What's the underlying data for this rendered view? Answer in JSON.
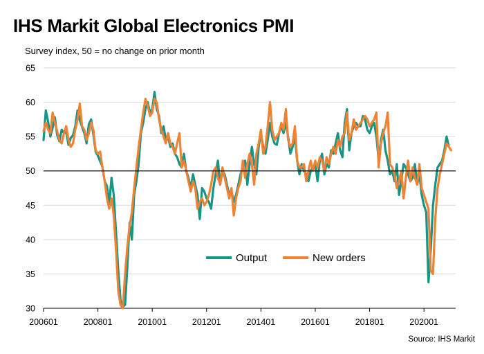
{
  "title": "IHS Markit Global Electronics PMI",
  "subtitle": "Survey index, 50 = no change on prior month",
  "source": "Source: IHS Markit",
  "colors": {
    "output": "#159488",
    "new_orders": "#EF8333",
    "grid": "#D9D9D9",
    "reference": "#000000"
  },
  "chart_data": {
    "type": "line",
    "title": "IHS Markit Global Electronics PMI",
    "ylabel": "Survey index, 50 = no change on prior month",
    "ylim": [
      30,
      65
    ],
    "yticks": [
      30,
      35,
      40,
      45,
      50,
      55,
      60,
      65
    ],
    "xlim": [
      0,
      182
    ],
    "xticks": [
      {
        "label": "200601",
        "index": 0
      },
      {
        "label": "200801",
        "index": 24
      },
      {
        "label": "201001",
        "index": 48
      },
      {
        "label": "201201",
        "index": 72
      },
      {
        "label": "201401",
        "index": 96
      },
      {
        "label": "201601",
        "index": 120
      },
      {
        "label": "201801",
        "index": 144
      },
      {
        "label": "202001",
        "index": 168
      }
    ],
    "reference_line": 50,
    "legend": [
      "Output",
      "New orders"
    ],
    "legend_position": "lower-center",
    "series": [
      {
        "name": "Output",
        "values": [
          54.5,
          58.8,
          57.2,
          55.0,
          56.3,
          57.8,
          55.2,
          54.3,
          56.0,
          55.5,
          55.7,
          53.8,
          54.8,
          55.2,
          56.5,
          58.8,
          57.4,
          56.4,
          55.5,
          54.0,
          56.8,
          57.5,
          55.3,
          52.8,
          52.2,
          51.4,
          50.6,
          48.5,
          47.8,
          45.1,
          49.0,
          46.5,
          41.1,
          35.5,
          31.2,
          30.2,
          30.5,
          36.0,
          42.5,
          40.0,
          46.5,
          48.5,
          51.0,
          55.5,
          57.0,
          59.0,
          60.0,
          58.5,
          59.0,
          61.5,
          59.0,
          58.0,
          55.5,
          56.5,
          54.5,
          55.0,
          53.5,
          54.0,
          52.5,
          52.0,
          51.0,
          50.5,
          52.5,
          50.0,
          49.0,
          47.5,
          49.5,
          48.0,
          46.5,
          43.0,
          47.5,
          47.0,
          46.0,
          45.5,
          44.5,
          47.5,
          49.5,
          51.5,
          48.0,
          50.0,
          49.5,
          48.0,
          46.5,
          47.0,
          45.5,
          46.5,
          48.0,
          49.5,
          50.5,
          51.5,
          48.0,
          51.0,
          53.5,
          51.0,
          49.5,
          53.5,
          55.5,
          53.5,
          52.5,
          54.5,
          57.0,
          55.0,
          54.0,
          53.8,
          55.5,
          56.5,
          55.5,
          57.0,
          55.0,
          52.5,
          53.5,
          55.0,
          51.5,
          49.5,
          51.0,
          50.0,
          49.5,
          48.5,
          50.0,
          50.5,
          51.0,
          48.5,
          51.5,
          52.5,
          49.5,
          51.0,
          50.5,
          53.0,
          52.5,
          54.0,
          55.5,
          53.0,
          52.0,
          57.0,
          59.0,
          53.0,
          55.5,
          56.5,
          57.0,
          56.5,
          56.5,
          58.0,
          57.5,
          56.0,
          55.5,
          56.5,
          57.0,
          55.0,
          51.5,
          54.5,
          56.0,
          53.0,
          51.5,
          49.5,
          50.0,
          48.5,
          51.0,
          46.5,
          48.5,
          51.0,
          50.5,
          49.5,
          48.5,
          49.0,
          51.0,
          48.0,
          49.5,
          46.5,
          45.0,
          44.0,
          33.8,
          38.5,
          45.0,
          48.0,
          50.5,
          51.0,
          51.5,
          53.0,
          55.0,
          53.5
        ],
        "color": "#159488"
      },
      {
        "name": "New orders",
        "values": [
          55.8,
          57.0,
          56.0,
          55.5,
          58.5,
          57.0,
          55.8,
          54.5,
          54.0,
          55.5,
          56.5,
          54.5,
          53.5,
          54.0,
          56.0,
          57.5,
          59.8,
          56.5,
          56.0,
          54.5,
          55.5,
          57.0,
          56.0,
          53.0,
          52.5,
          52.8,
          50.5,
          48.5,
          46.0,
          44.5,
          46.0,
          43.5,
          38.5,
          32.5,
          30.5,
          30.0,
          35.0,
          39.0,
          42.0,
          44.0,
          47.5,
          50.5,
          53.5,
          56.0,
          58.5,
          60.5,
          59.5,
          58.0,
          58.5,
          60.5,
          60.0,
          57.5,
          56.0,
          55.0,
          54.0,
          55.5,
          54.0,
          53.5,
          52.5,
          54.0,
          55.5,
          50.5,
          51.5,
          50.0,
          48.5,
          47.0,
          48.5,
          47.5,
          44.5,
          45.5,
          46.0,
          45.0,
          45.5,
          46.5,
          48.0,
          50.0,
          50.5,
          49.0,
          48.0,
          50.5,
          49.0,
          47.5,
          46.0,
          47.5,
          43.5,
          46.0,
          47.5,
          48.5,
          51.5,
          49.0,
          51.0,
          52.5,
          51.0,
          48.0,
          52.5,
          54.0,
          56.0,
          52.5,
          53.5,
          56.5,
          60.0,
          56.0,
          54.5,
          55.0,
          55.5,
          57.0,
          56.0,
          59.0,
          54.5,
          53.5,
          54.0,
          56.5,
          51.5,
          50.5,
          50.5,
          51.0,
          48.5,
          50.0,
          51.5,
          50.0,
          51.5,
          50.5,
          52.0,
          51.5,
          50.0,
          52.0,
          51.0,
          52.5,
          53.5,
          52.5,
          54.5,
          53.5,
          55.0,
          55.5,
          58.5,
          54.5,
          55.5,
          57.5,
          56.0,
          56.5,
          57.0,
          57.5,
          58.0,
          57.5,
          56.5,
          57.0,
          57.5,
          58.5,
          50.5,
          54.0,
          55.5,
          56.5,
          58.5,
          51.0,
          50.5,
          49.5,
          47.5,
          48.5,
          50.0,
          46.0,
          49.0,
          51.5,
          48.5,
          50.5,
          49.0,
          48.0,
          51.0,
          47.5,
          46.5,
          45.5,
          44.5,
          35.5,
          35.0,
          43.0,
          47.5,
          49.5,
          51.0,
          52.5,
          54.0,
          53.5,
          53.0
        ],
        "color": "#EF8333"
      }
    ]
  }
}
